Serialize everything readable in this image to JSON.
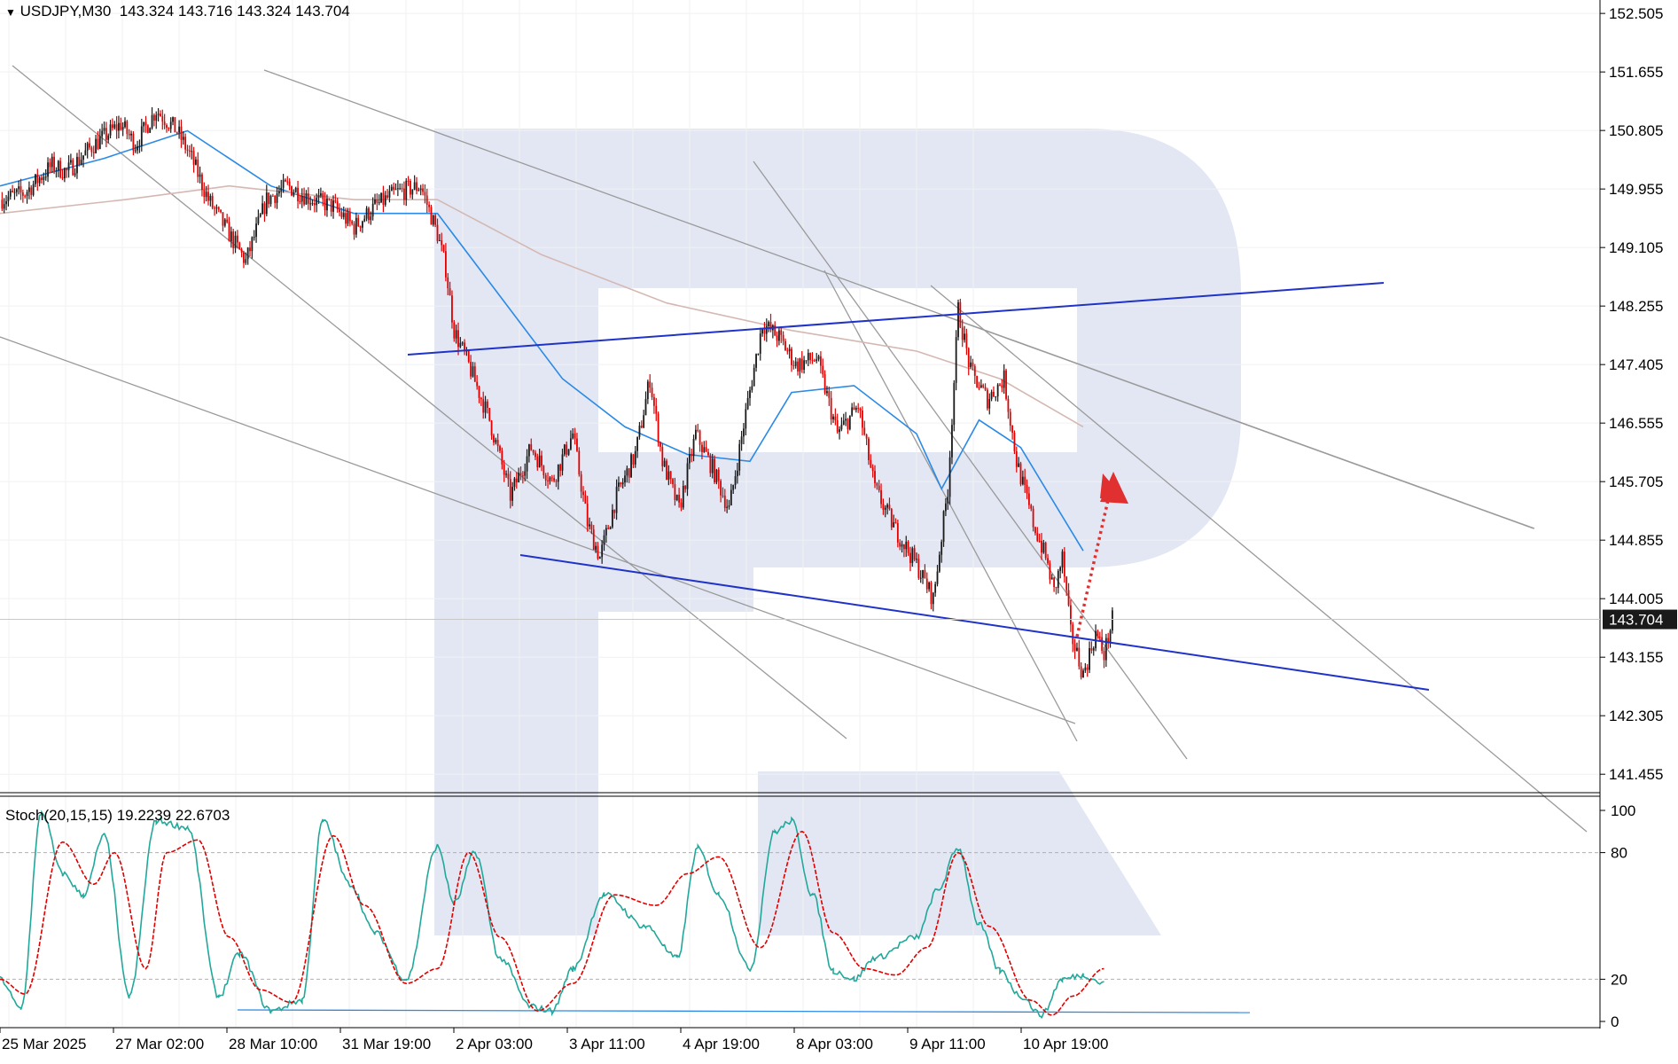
{
  "header": {
    "symbol": "USDJPY,M30",
    "ohlc": "143.324 143.716 143.324 143.704"
  },
  "stoch_header": {
    "label": "Stoch(20,15,15) 19.2239 22.6703"
  },
  "colors": {
    "bull_candle": "#1a1a1a",
    "bear_candle": "#e00000",
    "ma_fast": "#2b8ae6",
    "ma_slow": "#d4b8b2",
    "channel": "#1f33c9",
    "trend": "#9a9a9a",
    "stoch_main": "#21a89a",
    "stoch_signal": "#e00000",
    "arrow": "#e03030",
    "watermark": "#e3e7f3",
    "price_tag_bg": "#1a1a1a"
  },
  "chart_data": [
    {
      "type": "candlestick",
      "symbol": "USDJPY",
      "timeframe": "M30",
      "ylim": [
        141.2,
        152.7
      ],
      "y_ticks": [
        "152.505",
        "151.655",
        "150.805",
        "149.955",
        "149.105",
        "148.255",
        "147.405",
        "146.555",
        "145.705",
        "144.855",
        "144.005",
        "143.155",
        "142.305",
        "141.455"
      ],
      "current_price": "143.704",
      "x_ticks": [
        "25 Mar 2025",
        "27 Mar 02:00",
        "28 Mar 10:00",
        "31 Mar 19:00",
        "2 Apr 03:00",
        "3 Apr 11:00",
        "4 Apr 19:00",
        "8 Apr 03:00",
        "9 Apr 11:00",
        "10 Apr 19:00"
      ],
      "close_path": [
        [
          0,
          149.8
        ],
        [
          12,
          149.9
        ],
        [
          25,
          150.3
        ],
        [
          32,
          150.2
        ],
        [
          45,
          150.6
        ],
        [
          58,
          150.9
        ],
        [
          65,
          150.6
        ],
        [
          75,
          151.1
        ],
        [
          85,
          150.8
        ],
        [
          92,
          150.4
        ],
        [
          100,
          149.8
        ],
        [
          110,
          149.3
        ],
        [
          118,
          148.9
        ],
        [
          128,
          149.8
        ],
        [
          138,
          150.0
        ],
        [
          150,
          149.8
        ],
        [
          160,
          149.7
        ],
        [
          170,
          149.4
        ],
        [
          180,
          149.7
        ],
        [
          190,
          149.9
        ],
        [
          202,
          150.0
        ],
        [
          210,
          149.3
        ],
        [
          214,
          148.8
        ],
        [
          218,
          147.9
        ],
        [
          225,
          147.4
        ],
        [
          235,
          146.6
        ],
        [
          245,
          145.5
        ],
        [
          255,
          146.2
        ],
        [
          265,
          145.7
        ],
        [
          275,
          146.4
        ],
        [
          282,
          145.1
        ],
        [
          288,
          144.6
        ],
        [
          296,
          145.5
        ],
        [
          305,
          146.1
        ],
        [
          312,
          147.2
        ],
        [
          318,
          146.0
        ],
        [
          326,
          145.3
        ],
        [
          334,
          146.4
        ],
        [
          342,
          145.9
        ],
        [
          350,
          145.3
        ],
        [
          358,
          146.7
        ],
        [
          366,
          148.0
        ],
        [
          374,
          147.8
        ],
        [
          382,
          147.4
        ],
        [
          392,
          147.5
        ],
        [
          402,
          146.4
        ],
        [
          412,
          146.8
        ],
        [
          420,
          145.6
        ],
        [
          430,
          145.0
        ],
        [
          440,
          144.5
        ],
        [
          448,
          144.0
        ],
        [
          455,
          145.6
        ],
        [
          460,
          148.2
        ],
        [
          466,
          147.3
        ],
        [
          474,
          146.9
        ],
        [
          482,
          147.2
        ],
        [
          488,
          146.0
        ],
        [
          496,
          145.1
        ],
        [
          502,
          144.6
        ],
        [
          506,
          144.1
        ],
        [
          510,
          144.6
        ],
        [
          514,
          143.5
        ],
        [
          520,
          142.9
        ],
        [
          526,
          143.5
        ],
        [
          530,
          143.2
        ],
        [
          534,
          143.7
        ]
      ],
      "series": [
        {
          "name": "",
          "kind": "ma_fast",
          "points": [
            [
              0,
              150.0
            ],
            [
              50,
              150.4
            ],
            [
              90,
              150.8
            ],
            [
              130,
              150.0
            ],
            [
              170,
              149.6
            ],
            [
              210,
              149.6
            ],
            [
              240,
              148.4
            ],
            [
              270,
              147.2
            ],
            [
              300,
              146.5
            ],
            [
              330,
              146.1
            ],
            [
              360,
              146.0
            ],
            [
              380,
              147.0
            ],
            [
              410,
              147.1
            ],
            [
              440,
              146.4
            ],
            [
              452,
              145.6
            ],
            [
              470,
              146.6
            ],
            [
              490,
              146.2
            ],
            [
              510,
              145.2
            ],
            [
              520,
              144.7
            ]
          ]
        },
        {
          "name": "",
          "kind": "ma_slow",
          "points": [
            [
              0,
              149.6
            ],
            [
              60,
              149.8
            ],
            [
              110,
              150.0
            ],
            [
              170,
              149.8
            ],
            [
              210,
              149.8
            ],
            [
              260,
              149.0
            ],
            [
              320,
              148.3
            ],
            [
              380,
              147.9
            ],
            [
              440,
              147.6
            ],
            [
              480,
              147.2
            ],
            [
              520,
              146.5
            ]
          ]
        }
      ]
    },
    {
      "type": "line",
      "title": "Stoch(20,15,15)",
      "ylim": [
        0,
        100
      ],
      "y_ticks": [
        "100",
        "80",
        "20",
        "0"
      ],
      "levels": [
        80,
        20
      ],
      "series": [
        {
          "name": "",
          "kind": "main",
          "points": [
            [
              0,
              20
            ],
            [
              10,
              6
            ],
            [
              20,
              99
            ],
            [
              30,
              70
            ],
            [
              40,
              60
            ],
            [
              50,
              88
            ],
            [
              62,
              12
            ],
            [
              75,
              95
            ],
            [
              90,
              92
            ],
            [
              105,
              12
            ],
            [
              115,
              32
            ],
            [
              130,
              5
            ],
            [
              145,
              10
            ],
            [
              155,
              95
            ],
            [
              168,
              65
            ],
            [
              180,
              42
            ],
            [
              195,
              20
            ],
            [
              210,
              83
            ],
            [
              218,
              56
            ],
            [
              228,
              80
            ],
            [
              240,
              30
            ],
            [
              255,
              7
            ],
            [
              265,
              5
            ],
            [
              275,
              25
            ],
            [
              290,
              60
            ],
            [
              310,
              45
            ],
            [
              325,
              30
            ],
            [
              335,
              82
            ],
            [
              345,
              60
            ],
            [
              360,
              25
            ],
            [
              372,
              90
            ],
            [
              380,
              95
            ],
            [
              390,
              60
            ],
            [
              400,
              24
            ],
            [
              410,
              20
            ],
            [
              420,
              30
            ],
            [
              440,
              40
            ],
            [
              450,
              62
            ],
            [
              460,
              82
            ],
            [
              470,
              46
            ],
            [
              480,
              24
            ],
            [
              490,
              12
            ],
            [
              500,
              3
            ],
            [
              510,
              20
            ],
            [
              520,
              22
            ],
            [
              530,
              18
            ]
          ]
        },
        {
          "name": "",
          "kind": "signal",
          "points": [
            [
              0,
              20
            ],
            [
              12,
              13
            ],
            [
              30,
              85
            ],
            [
              45,
              65
            ],
            [
              55,
              80
            ],
            [
              70,
              25
            ],
            [
              80,
              80
            ],
            [
              95,
              86
            ],
            [
              110,
              40
            ],
            [
              125,
              15
            ],
            [
              140,
              9
            ],
            [
              160,
              88
            ],
            [
              175,
              55
            ],
            [
              195,
              18
            ],
            [
              210,
              25
            ],
            [
              225,
              80
            ],
            [
              240,
              40
            ],
            [
              258,
              5
            ],
            [
              275,
              18
            ],
            [
              295,
              60
            ],
            [
              315,
              55
            ],
            [
              330,
              70
            ],
            [
              345,
              78
            ],
            [
              365,
              35
            ],
            [
              385,
              90
            ],
            [
              400,
              42
            ],
            [
              415,
              25
            ],
            [
              430,
              22
            ],
            [
              445,
              35
            ],
            [
              460,
              80
            ],
            [
              475,
              45
            ],
            [
              495,
              10
            ],
            [
              505,
              3
            ],
            [
              515,
              12
            ],
            [
              530,
              25
            ]
          ]
        }
      ]
    }
  ]
}
